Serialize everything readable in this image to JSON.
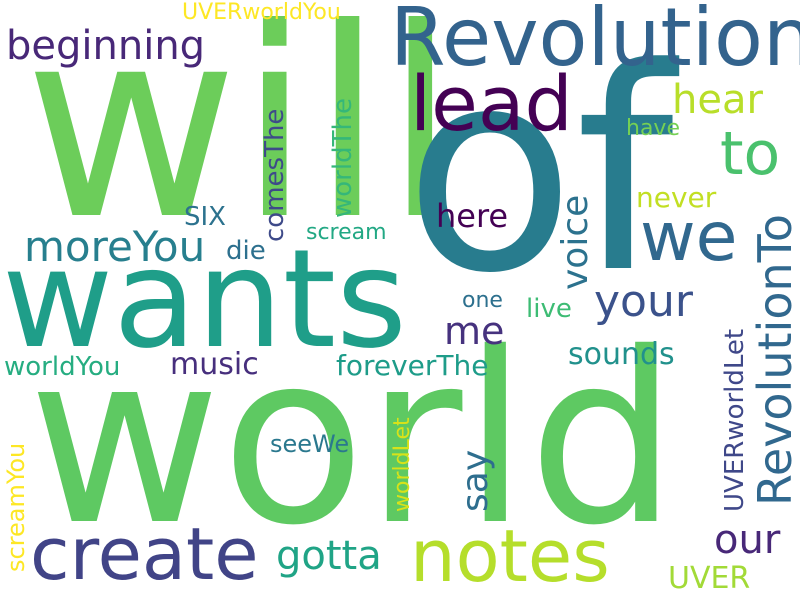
{
  "cloud": {
    "words": [
      {
        "text": "world",
        "color": "#5ec962"
      },
      {
        "text": "will",
        "color": "#6ccd5a"
      },
      {
        "text": "of",
        "color": "#287c8e"
      },
      {
        "text": "wants",
        "color": "#1f9e89"
      },
      {
        "text": "Revolution",
        "color": "#33638d"
      },
      {
        "text": "create",
        "color": "#414487"
      },
      {
        "text": "notes",
        "color": "#b5de2b"
      },
      {
        "text": "lead",
        "color": "#440154"
      },
      {
        "text": "we",
        "color": "#31688e"
      },
      {
        "text": "to",
        "color": "#4ac16d"
      },
      {
        "text": "RevolutionTo",
        "color": "#31688e"
      },
      {
        "text": "beginning",
        "color": "#482878"
      },
      {
        "text": "moreYou",
        "color": "#277f8e"
      },
      {
        "text": "voice",
        "color": "#2c728e"
      },
      {
        "text": "your",
        "color": "#3b528b"
      },
      {
        "text": "hear",
        "color": "#b8de29"
      },
      {
        "text": "gotta",
        "color": "#20a486"
      },
      {
        "text": "our",
        "color": "#482878"
      },
      {
        "text": "say",
        "color": "#2e6e8e"
      },
      {
        "text": "me",
        "color": "#46327e"
      },
      {
        "text": "UVERworldYou",
        "color": "#fde725"
      },
      {
        "text": "comesThe",
        "color": "#3e4a89"
      },
      {
        "text": "worldThe",
        "color": "#35b779"
      },
      {
        "text": "SIX",
        "color": "#2c728e"
      },
      {
        "text": "die",
        "color": "#2d708e"
      },
      {
        "text": "here",
        "color": "#440154"
      },
      {
        "text": "never",
        "color": "#c2df23"
      },
      {
        "text": "have",
        "color": "#75d054"
      },
      {
        "text": "scream",
        "color": "#22a884"
      },
      {
        "text": "live",
        "color": "#3dbc74"
      },
      {
        "text": "one",
        "color": "#2d708e"
      },
      {
        "text": "music",
        "color": "#472f7d"
      },
      {
        "text": "sounds",
        "color": "#21918c"
      },
      {
        "text": "foreverThe",
        "color": "#1e9c89"
      },
      {
        "text": "worldYou",
        "color": "#26ad81"
      },
      {
        "text": "seeWe",
        "color": "#2a788e"
      },
      {
        "text": "screamYou",
        "color": "#fde725"
      },
      {
        "text": "worldLet",
        "color": "#d8e219"
      },
      {
        "text": "UVERworldLet",
        "color": "#3f4889"
      },
      {
        "text": "UVER",
        "color": "#a2da37"
      }
    ]
  }
}
